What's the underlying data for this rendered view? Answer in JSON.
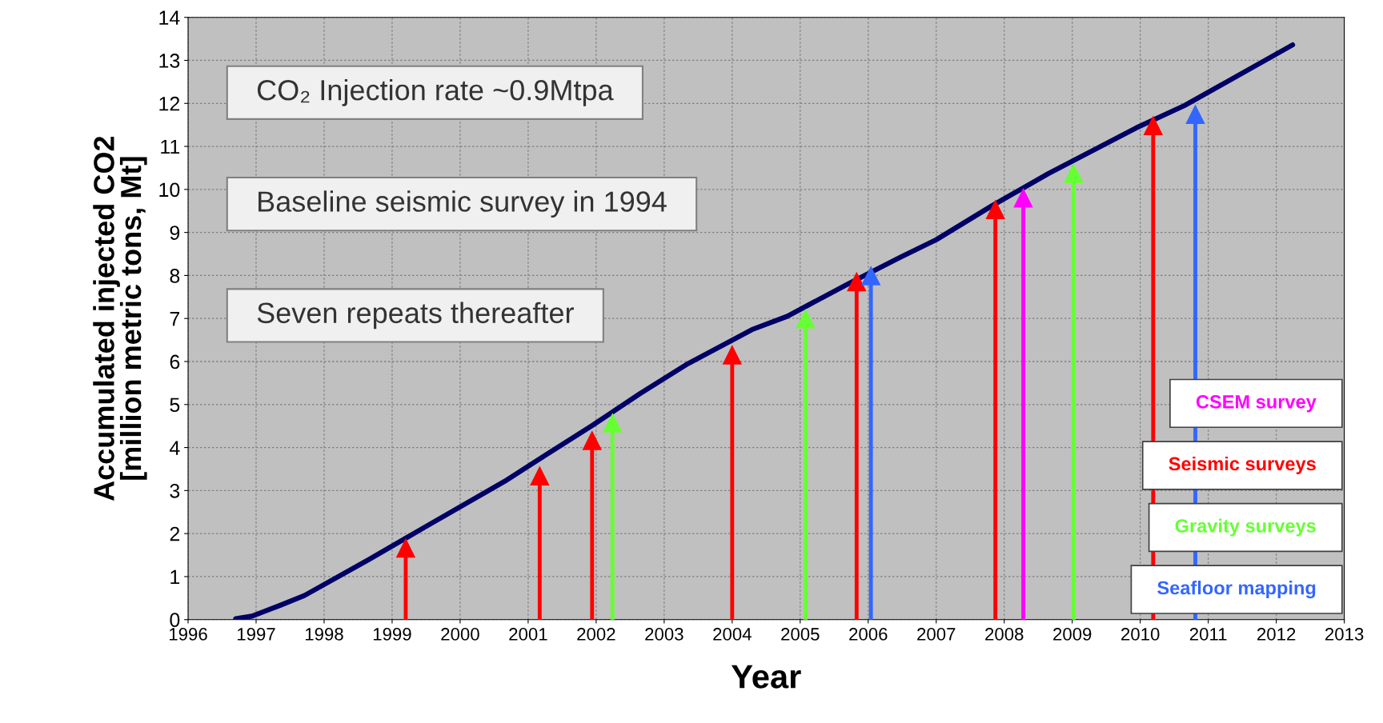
{
  "chart_data": {
    "type": "line",
    "xlabel": "Year",
    "ylabel": "Accumulated injected CO2\n[million metric tons, Mt]",
    "xlim": [
      1996,
      2013
    ],
    "xticks": [
      1996,
      1997,
      1998,
      1999,
      2000,
      2001,
      2002,
      2003,
      2004,
      2005,
      2006,
      2007,
      2008,
      2009,
      2010,
      2011,
      2012,
      2013
    ],
    "ylim": [
      0,
      14
    ],
    "yticks": [
      0,
      1,
      2,
      3,
      4,
      5,
      6,
      7,
      8,
      9,
      10,
      11,
      12,
      13,
      14
    ],
    "grid": true,
    "annotations": [
      "CO₂ Injection rate ~0.9Mtpa",
      "Baseline seismic survey in 1994",
      "Seven repeats thereafter"
    ],
    "series": [
      {
        "color": "#000066",
        "x": [
          1996.7,
          1996.94,
          1997.35,
          1997.71,
          1998.65,
          1999.47,
          2000.65,
          2001.24,
          2001.94,
          2002.65,
          2003.35,
          2004.29,
          2004.81,
          2005.71,
          2006.47,
          2007.0,
          2007.82,
          2008.65,
          2009.94,
          2010.65,
          2011.18,
          2012.24
        ],
        "values": [
          0.02,
          0.08,
          0.33,
          0.56,
          1.39,
          2.14,
          3.21,
          3.81,
          4.51,
          5.26,
          5.95,
          6.74,
          7.05,
          7.81,
          8.42,
          8.83,
          9.62,
          10.37,
          11.43,
          11.95,
          12.42,
          13.36
        ]
      },
      {
        "type": "lollipop",
        "marker": "triangle",
        "name": "CSEM survey",
        "color": "#ff00ff",
        "x": [
          2008.28
        ],
        "values": [
          9.8
        ]
      },
      {
        "type": "lollipop",
        "marker": "triangle",
        "name": "Seismic surveys",
        "color": "#ff0000",
        "x": [
          1999.2,
          2001.17,
          2001.94,
          2004.0,
          2005.83,
          2007.87,
          2010.19
        ],
        "values": [
          1.66,
          3.34,
          4.16,
          6.15,
          7.85,
          9.53,
          11.48
        ]
      },
      {
        "type": "lollipop",
        "marker": "triangle",
        "name": "Gravity surveys",
        "color": "#66ff33",
        "x": [
          2002.24,
          2005.08,
          2009.02
        ],
        "values": [
          4.57,
          6.99,
          10.37
        ]
      },
      {
        "type": "lollipop",
        "marker": "triangle",
        "name": "Seafloor mapping",
        "color": "#3366ff",
        "x": [
          2006.04,
          2010.81
        ],
        "values": [
          7.99,
          11.74
        ]
      }
    ]
  }
}
